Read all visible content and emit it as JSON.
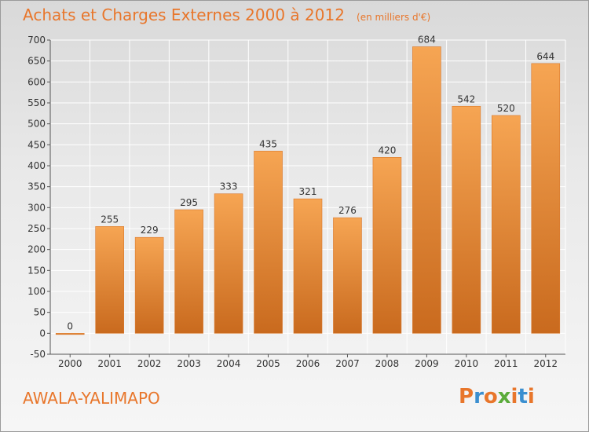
{
  "header": {
    "title": "Achats et Charges Externes 2000 à 2012",
    "unit": "(en milliers d'€)"
  },
  "footer": {
    "place": "AWALA-YALIMAPO",
    "logo": "Proxiti"
  },
  "colors": {
    "bar_top": "#f6a553",
    "bar_bottom": "#c96a1e",
    "title": "#e8762b",
    "logo_letters": [
      "#e8762b",
      "#3a8fd0",
      "#e8762b",
      "#5aab3a",
      "#e8762b",
      "#3a8fd0",
      "#e8762b"
    ]
  },
  "chart_data": {
    "type": "bar",
    "categories": [
      "2000",
      "2001",
      "2002",
      "2003",
      "2004",
      "2005",
      "2006",
      "2007",
      "2008",
      "2009",
      "2010",
      "2011",
      "2012"
    ],
    "values": [
      0,
      255,
      229,
      295,
      333,
      435,
      321,
      276,
      420,
      684,
      542,
      520,
      644
    ],
    "data_labels": [
      "0",
      "255",
      "229",
      "295",
      "333",
      "435",
      "321",
      "276",
      "420",
      "684",
      "542",
      "520",
      "644"
    ],
    "title": "Achats et Charges Externes 2000 à 2012",
    "ylim": [
      -50,
      700
    ],
    "yticks": [
      -50,
      0,
      50,
      100,
      150,
      200,
      250,
      300,
      350,
      400,
      450,
      500,
      550,
      600,
      650,
      700
    ],
    "grid": true,
    "legend": "none"
  }
}
